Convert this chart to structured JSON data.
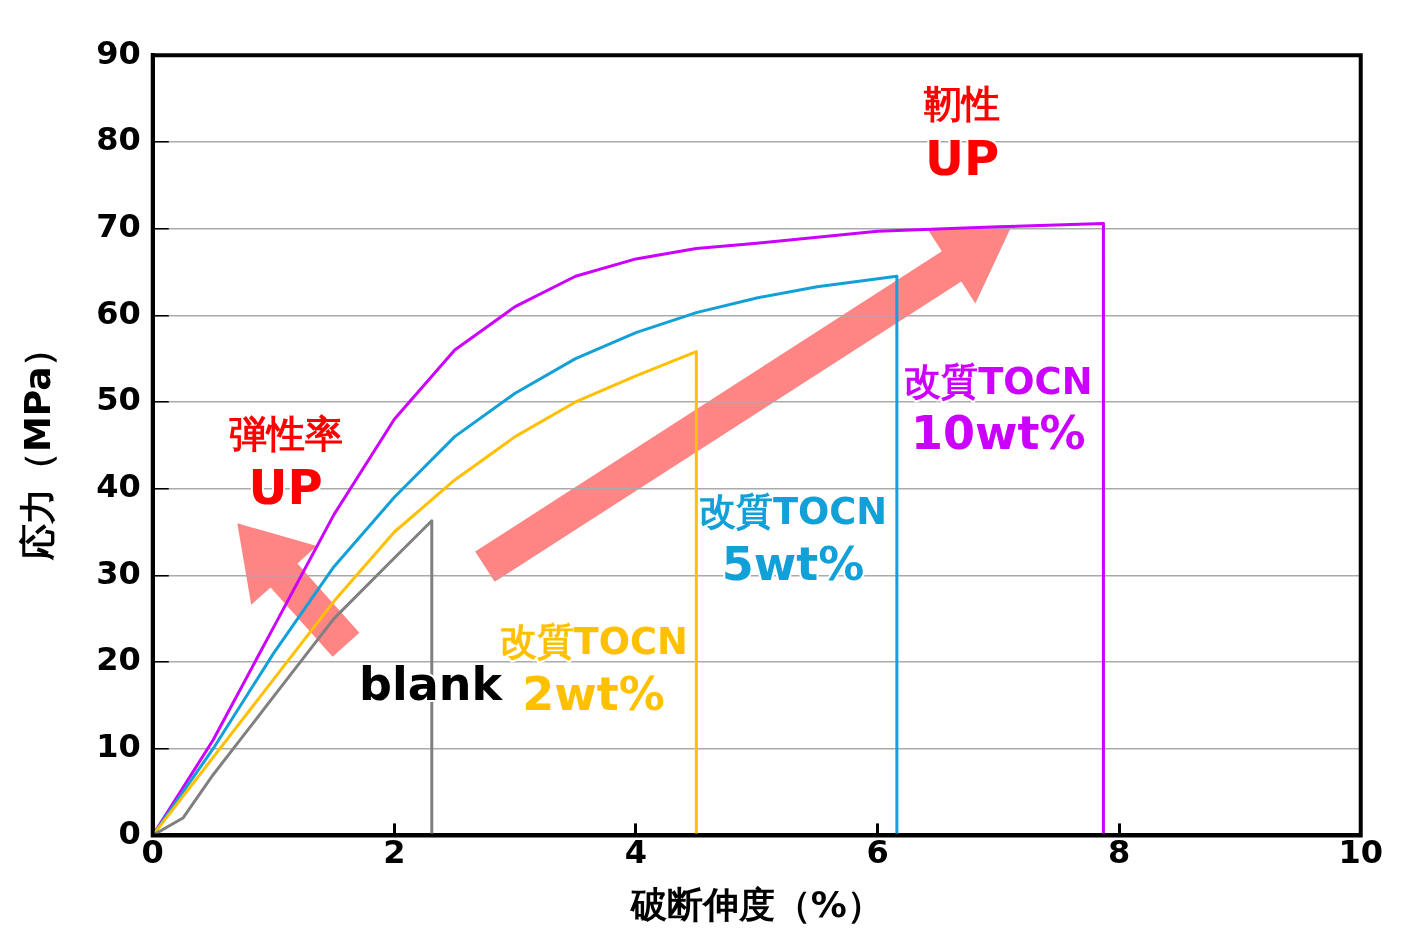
{
  "chart_data": {
    "type": "line",
    "xlabel": "破断伸度（%）",
    "ylabel": "応力（MPa）",
    "xlim": [
      0,
      10
    ],
    "xticks": [
      0,
      2,
      4,
      6,
      8,
      10
    ],
    "ylim": [
      0,
      90
    ],
    "yticks": [
      0,
      10,
      20,
      30,
      40,
      50,
      60,
      70,
      80,
      90
    ],
    "grid": "y",
    "legend": false,
    "marker": "none",
    "line_style": "solid",
    "series": [
      {
        "name": "blank",
        "color": "#808080",
        "x": [
          0,
          0.25,
          0.5,
          1,
          1.5,
          2,
          2.31,
          2.31
        ],
        "values": [
          0,
          2,
          7,
          16,
          25,
          32,
          36.3,
          0
        ]
      },
      {
        "name": "改質TOCN\n2wt%",
        "color": "#ffc000",
        "x": [
          0,
          0.5,
          1,
          1.5,
          2,
          2.5,
          3,
          3.5,
          4,
          4.5,
          4.5
        ],
        "values": [
          0,
          9,
          18,
          27,
          35,
          41,
          46,
          50,
          53,
          55.8,
          0
        ]
      },
      {
        "name": "改質TOCN\n5wt%",
        "color": "#12a0d8",
        "x": [
          0,
          0.5,
          1,
          1.5,
          2,
          2.5,
          3,
          3.5,
          4,
          4.5,
          5,
          5.5,
          6.16,
          6.16
        ],
        "values": [
          0,
          10,
          21,
          31,
          39,
          46,
          51,
          55,
          58,
          60.3,
          62,
          63.3,
          64.5,
          0
        ]
      },
      {
        "name": "改質TOCN\n10wt%",
        "color": "#cc00ff",
        "x": [
          0,
          0.5,
          1,
          1.5,
          2,
          2.5,
          3,
          3.5,
          4,
          4.5,
          5,
          6,
          7,
          7.87,
          7.87
        ],
        "values": [
          0,
          11,
          24,
          37,
          48,
          56,
          61,
          64.5,
          66.5,
          67.7,
          68.3,
          69.7,
          70.2,
          70.6,
          0
        ]
      }
    ],
    "annotations": [
      "弾性率\nUP",
      "靭性\nUP"
    ]
  }
}
